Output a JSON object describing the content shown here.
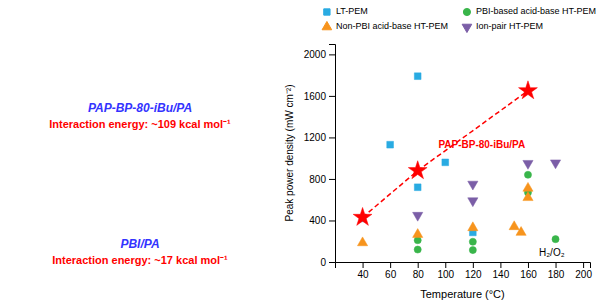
{
  "chart_data": {
    "type": "scatter",
    "x_label": "Temperature (°C)",
    "y_label": "Peak power density (mW cm⁻²)",
    "xlim": [
      20,
      205
    ],
    "ylim": [
      0,
      2100
    ],
    "xticks": [
      40,
      60,
      80,
      100,
      120,
      140,
      160,
      180,
      200
    ],
    "yticks": [
      0,
      400,
      800,
      1200,
      1600,
      2000
    ],
    "grid": false,
    "legend": "top",
    "series": [
      {
        "name": "LT-PEM",
        "color": "#29ABE2",
        "marker": "square",
        "x": [
          40,
          60,
          80,
          80,
          100,
          120
        ],
        "values": [
          420,
          1130,
          1790,
          720,
          960,
          285
        ]
      },
      {
        "name": "PBI-based acid-base HT-PEM",
        "color": "#39B54A",
        "marker": "circle",
        "x": [
          80,
          80,
          120,
          120,
          160,
          160,
          180
        ],
        "values": [
          210,
          120,
          195,
          115,
          840,
          670,
          220
        ]
      },
      {
        "name": "Non-PBI acid-base HT-PEM",
        "color": "#F7941D",
        "marker": "triangle-up",
        "x": [
          40,
          80,
          120,
          150,
          155,
          160,
          160
        ],
        "values": [
          185,
          265,
          330,
          340,
          285,
          710,
          620
        ]
      },
      {
        "name": "Ion-pair HT-PEM",
        "color": "#7B5EA7",
        "marker": "triangle-down",
        "x": [
          80,
          120,
          120,
          160,
          180
        ],
        "values": [
          450,
          750,
          590,
          950,
          955
        ]
      },
      {
        "type": "line",
        "line_style": "dashed",
        "color": "red",
        "marker": "star",
        "x": [
          40,
          80,
          160
        ],
        "values": [
          430,
          880,
          1650
        ]
      }
    ],
    "annotations": [
      {
        "text": "PAP-BP-80-iBu/PA",
        "x": 95,
        "y": 1100,
        "color": "red"
      },
      {
        "text": "H₂/O₂",
        "x": 168,
        "y": 60
      },
      {
        "text": "PAP-BP-80-iBu/PA",
        "color": "#3333FF"
      },
      {
        "text": "Interaction energy: ~109 kcal mol⁻¹",
        "color": "red"
      },
      {
        "text": "PBI/PA",
        "color": "#3333FF"
      },
      {
        "text": "Interaction energy: ~17 kcal mol⁻¹",
        "color": "red"
      }
    ]
  }
}
